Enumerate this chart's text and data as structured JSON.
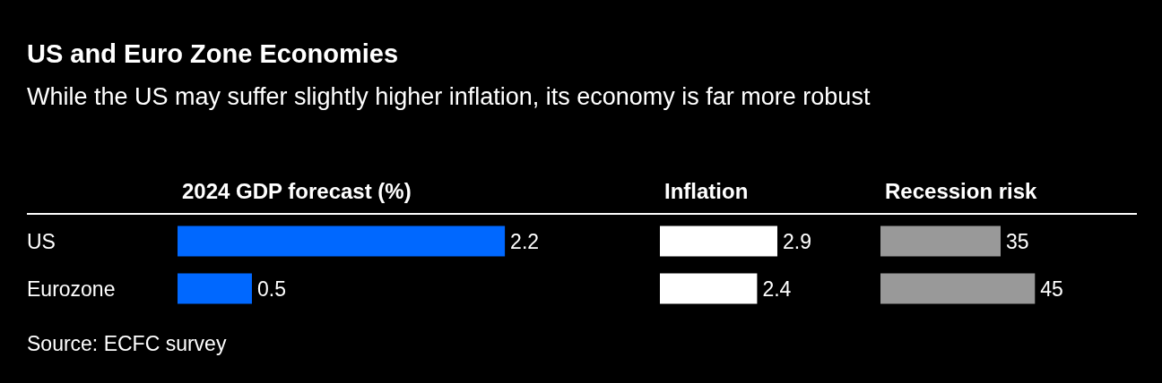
{
  "chart_data": [
    {
      "type": "other",
      "title": "US and Euro Zone Economies",
      "subtitle": "While the US may suffer slightly higher inflation, its economy is far more robust",
      "annotations": [
        "Source: ECFC survey"
      ]
    },
    {
      "type": "bar",
      "orientation": "horizontal",
      "title": "2024 GDP forecast (%)",
      "categories": [
        "US",
        "Eurozone"
      ],
      "values": [
        2.2,
        0.5
      ],
      "color": "#0068ff",
      "data_labels": true,
      "tick_labels": "y"
    },
    {
      "type": "bar",
      "orientation": "horizontal",
      "title": "Inflation",
      "values": [
        2.9,
        2.4
      ],
      "color": "#ffffff",
      "data_labels": true,
      "tick_labels": false
    },
    {
      "type": "bar",
      "orientation": "horizontal",
      "title": "Recession risk",
      "values": [
        35,
        45
      ],
      "color": "#999999",
      "data_labels": true,
      "tick_labels": false
    }
  ]
}
